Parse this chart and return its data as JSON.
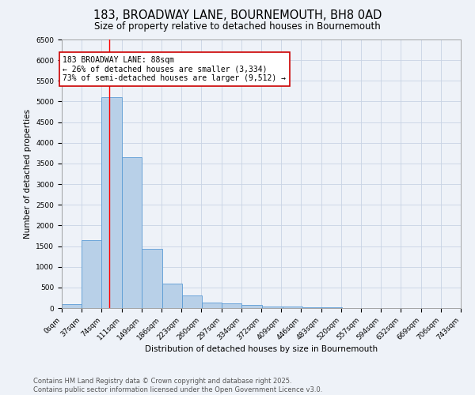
{
  "title": "183, BROADWAY LANE, BOURNEMOUTH, BH8 0AD",
  "subtitle": "Size of property relative to detached houses in Bournemouth",
  "xlabel": "Distribution of detached houses by size in Bournemouth",
  "ylabel": "Number of detached properties",
  "bar_left_edges": [
    0,
    37,
    74,
    111,
    149,
    186,
    223,
    260,
    297,
    334,
    372,
    409,
    446,
    483,
    520,
    557,
    594,
    632,
    669,
    706
  ],
  "bar_heights": [
    100,
    1650,
    5100,
    3650,
    1430,
    600,
    300,
    130,
    110,
    80,
    45,
    45,
    20,
    10,
    5,
    3,
    2,
    2,
    1,
    5
  ],
  "bin_width": 37,
  "bar_color": "#b8d0e8",
  "bar_edge_color": "#5b9bd5",
  "grid_color": "#c8d4e4",
  "background_color": "#eef2f8",
  "red_line_x": 88,
  "ylim": [
    0,
    6500
  ],
  "yticks": [
    0,
    500,
    1000,
    1500,
    2000,
    2500,
    3000,
    3500,
    4000,
    4500,
    5000,
    5500,
    6000,
    6500
  ],
  "xtick_labels": [
    "0sqm",
    "37sqm",
    "74sqm",
    "111sqm",
    "149sqm",
    "186sqm",
    "223sqm",
    "260sqm",
    "297sqm",
    "334sqm",
    "372sqm",
    "409sqm",
    "446sqm",
    "483sqm",
    "520sqm",
    "557sqm",
    "594sqm",
    "632sqm",
    "669sqm",
    "706sqm",
    "743sqm"
  ],
  "annotation_text": "183 BROADWAY LANE: 88sqm\n← 26% of detached houses are smaller (3,334)\n73% of semi-detached houses are larger (9,512) →",
  "annotation_box_color": "#ffffff",
  "annotation_border_color": "#cc0000",
  "footer_line1": "Contains HM Land Registry data © Crown copyright and database right 2025.",
  "footer_line2": "Contains public sector information licensed under the Open Government Licence v3.0.",
  "title_fontsize": 10.5,
  "subtitle_fontsize": 8.5,
  "axis_label_fontsize": 7.5,
  "tick_fontsize": 6.5,
  "annotation_fontsize": 7,
  "footer_fontsize": 6
}
